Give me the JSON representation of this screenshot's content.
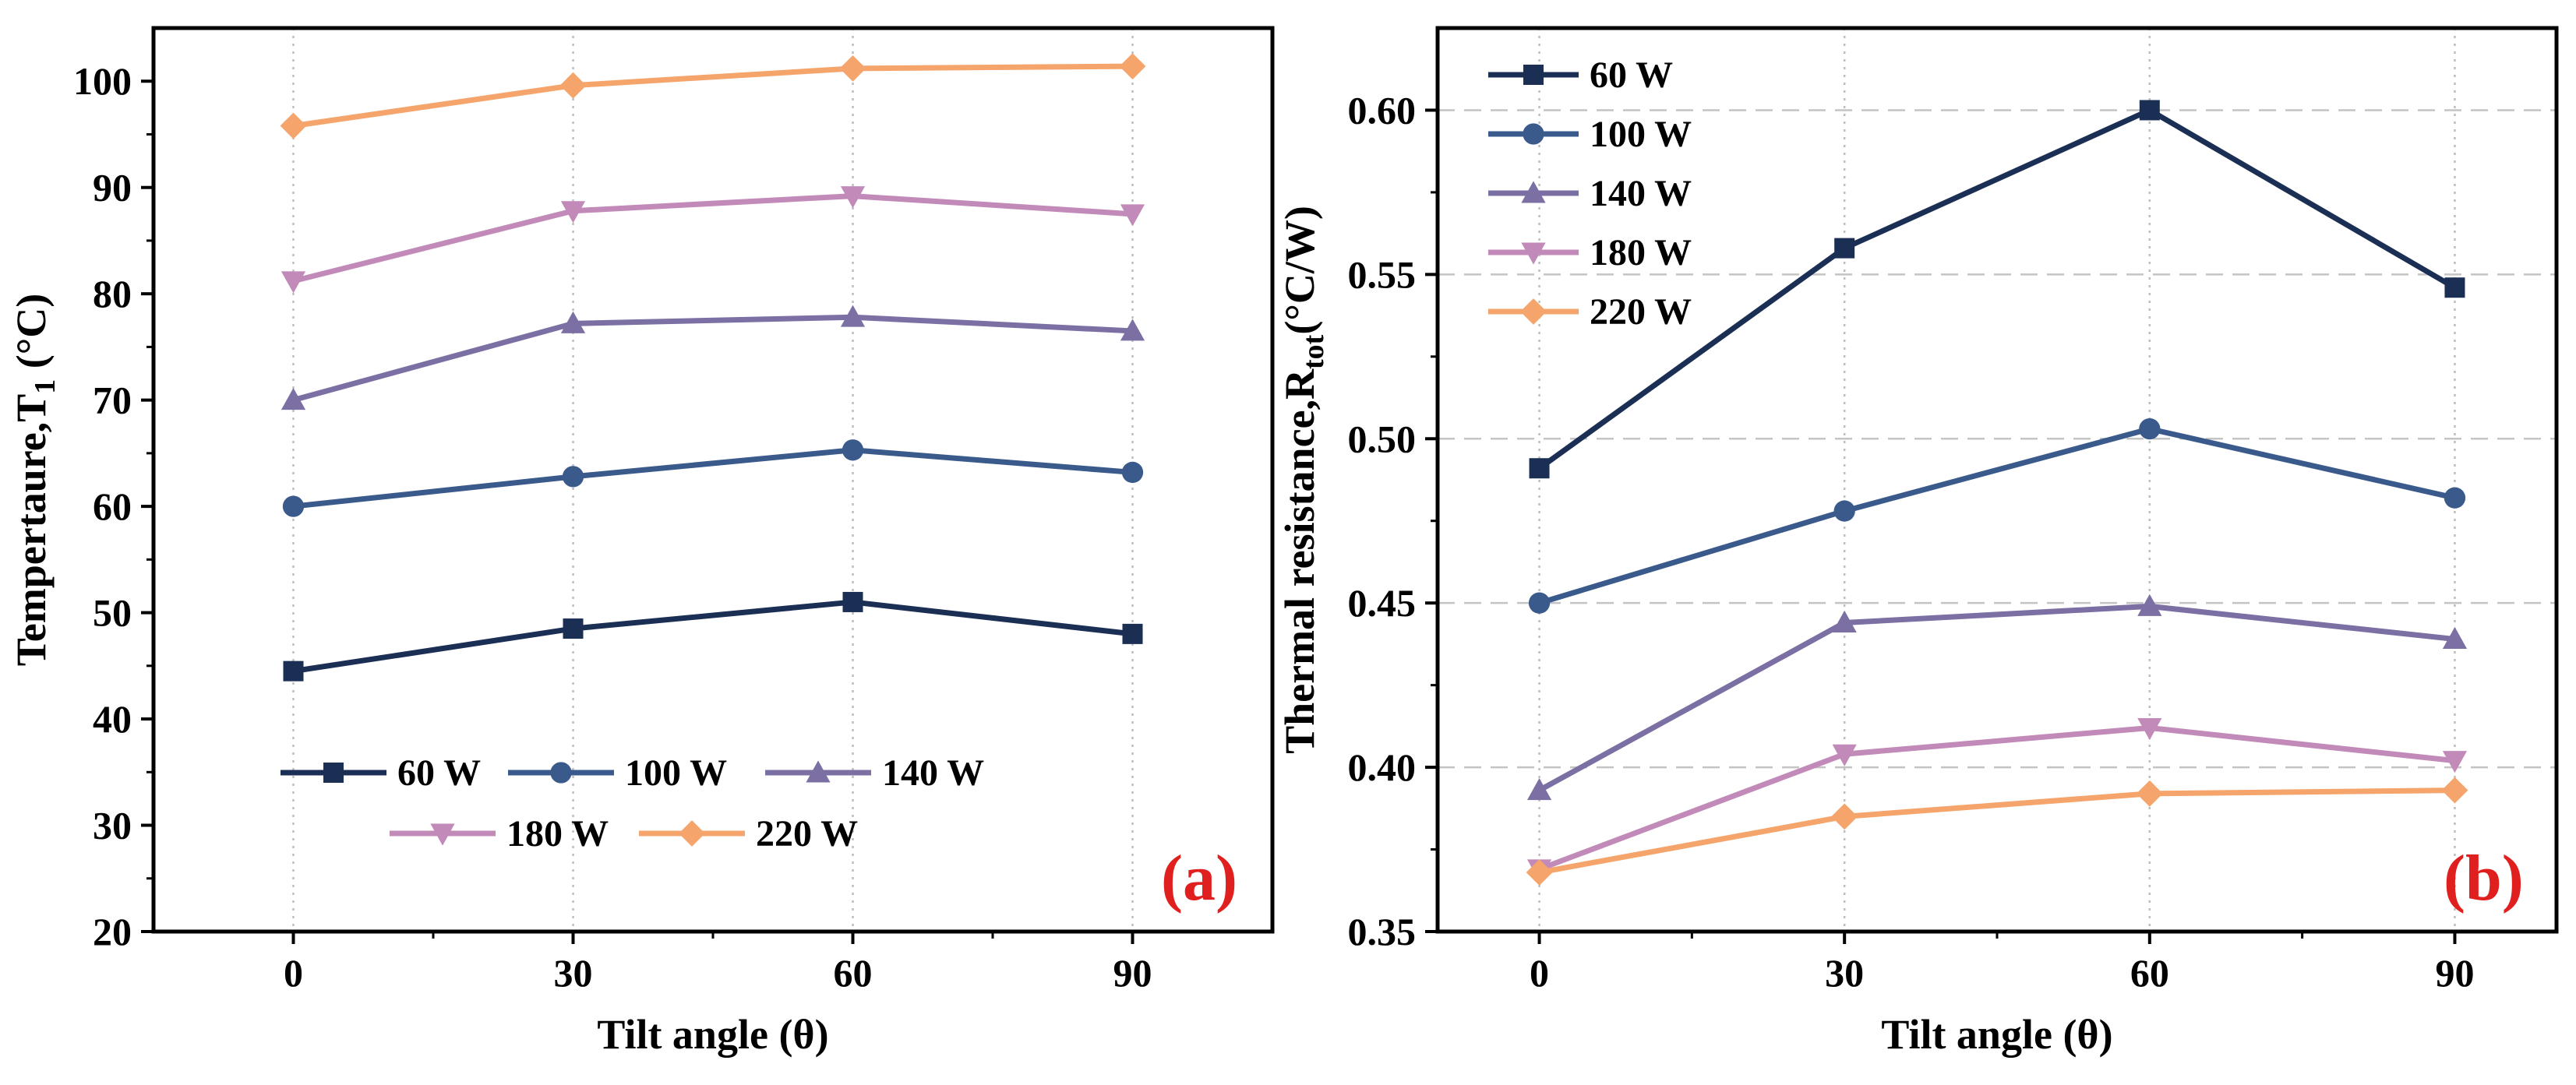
{
  "chart_data": [
    {
      "type": "line",
      "panel_label": "(a)",
      "panel_label_color": "#e01f1f",
      "x": [
        0,
        30,
        60,
        90
      ],
      "xticks": [
        "0",
        "30",
        "60",
        "90"
      ],
      "xlim": [
        -15,
        105
      ],
      "xlabel": "Tilt angle (θ)",
      "ylabel": "Tempertaure,T",
      "ylabel_sub": "1",
      "ylabel_unit": " (°C)",
      "ylim": [
        20,
        105
      ],
      "yticks": [
        "20",
        "30",
        "40",
        "50",
        "60",
        "70",
        "80",
        "90",
        "100"
      ],
      "grid": "vertical dotted",
      "legend_position": "bottom-center",
      "series": [
        {
          "name": "60 W",
          "values": [
            44.5,
            48.5,
            51.0,
            48.0
          ],
          "color": "#1b2f55",
          "marker": "square"
        },
        {
          "name": "100 W",
          "values": [
            60.0,
            62.8,
            65.3,
            63.2
          ],
          "color": "#3a5a8c",
          "marker": "circle"
        },
        {
          "name": "140 W",
          "values": [
            70.0,
            77.2,
            77.8,
            76.5
          ],
          "color": "#7b6fa3",
          "marker": "triangle-up"
        },
        {
          "name": "180 W",
          "values": [
            81.2,
            87.8,
            89.2,
            87.5
          ],
          "color": "#c28ab8",
          "marker": "triangle-down"
        },
        {
          "name": "220 W",
          "values": [
            95.8,
            99.6,
            101.2,
            101.4
          ],
          "color": "#f5a56b",
          "marker": "diamond"
        }
      ]
    },
    {
      "type": "line",
      "panel_label": "(b)",
      "panel_label_color": "#e01f1f",
      "x": [
        0,
        30,
        60,
        90
      ],
      "xticks": [
        "0",
        "30",
        "60",
        "90"
      ],
      "xlim": [
        -10,
        100
      ],
      "xlabel": "Tilt angle (θ)",
      "ylabel": "Thermal resistance,R",
      "ylabel_sub": "tot",
      "ylabel_unit": "(°C/W)",
      "ylim": [
        0.35,
        0.625
      ],
      "yticks": [
        "0.35",
        "0.40",
        "0.45",
        "0.50",
        "0.55",
        "0.60"
      ],
      "grid": "vertical dotted, horizontal dashed",
      "legend_position": "top-left",
      "series": [
        {
          "name": "60 W",
          "values": [
            0.491,
            0.558,
            0.6,
            0.546
          ],
          "color": "#1b2f55",
          "marker": "square"
        },
        {
          "name": "100 W",
          "values": [
            0.45,
            0.478,
            0.503,
            0.482
          ],
          "color": "#3a5a8c",
          "marker": "circle"
        },
        {
          "name": "140 W",
          "values": [
            0.393,
            0.444,
            0.449,
            0.439
          ],
          "color": "#7b6fa3",
          "marker": "triangle-up"
        },
        {
          "name": "180 W",
          "values": [
            0.369,
            0.404,
            0.412,
            0.402
          ],
          "color": "#c28ab8",
          "marker": "triangle-down"
        },
        {
          "name": "220 W",
          "values": [
            0.368,
            0.385,
            0.392,
            0.393
          ],
          "color": "#f5a56b",
          "marker": "diamond"
        }
      ]
    }
  ]
}
